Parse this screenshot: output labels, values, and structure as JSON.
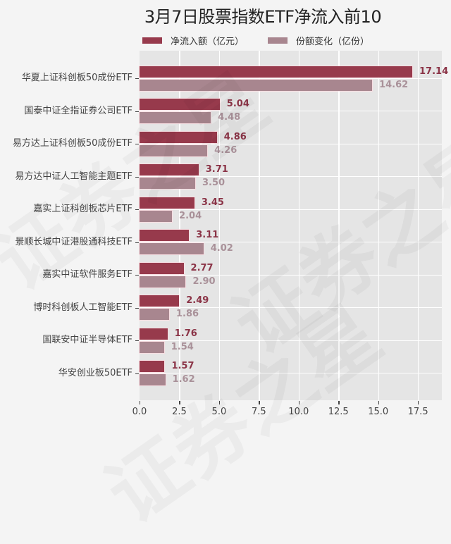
{
  "title": "3月7日股票指数ETF净流入前10",
  "legend": [
    {
      "label": "净流入额（亿元）",
      "color": "#973a4c"
    },
    {
      "label": "份额变化（亿份）",
      "color": "#a8868f"
    }
  ],
  "watermark": "证券之星",
  "x_ticks": [
    "0.0",
    "2.5",
    "5.0",
    "7.5",
    "10.0",
    "12.5",
    "15.0",
    "17.5"
  ],
  "chart_data": {
    "type": "bar",
    "orientation": "horizontal",
    "title": "3月7日股票指数ETF净流入前10",
    "xlabel": "",
    "ylabel": "",
    "xlim": [
      0,
      19
    ],
    "x_ticks": [
      0.0,
      2.5,
      5.0,
      7.5,
      10.0,
      12.5,
      15.0,
      17.5
    ],
    "grid": true,
    "legend_position": "top",
    "categories": [
      "华夏上证科创板50成份ETF",
      "国泰中证全指证券公司ETF",
      "易方达上证科创板50成份ETF",
      "易方达中证人工智能主题ETF",
      "嘉实上证科创板芯片ETF",
      "景顺长城中证港股通科技ETF",
      "嘉实中证软件服务ETF",
      "博时科创板人工智能ETF",
      "国联安中证半导体ETF",
      "华安创业板50ETF"
    ],
    "series": [
      {
        "name": "净流入额（亿元）",
        "color": "#973a4c",
        "values": [
          17.14,
          5.04,
          4.86,
          3.71,
          3.45,
          3.11,
          2.77,
          2.49,
          1.76,
          1.57
        ],
        "labels": [
          "17.14",
          "5.04",
          "4.86",
          "3.71",
          "3.45",
          "3.11",
          "2.77",
          "2.49",
          "1.76",
          "1.57"
        ]
      },
      {
        "name": "份额变化（亿份）",
        "color": "#a8868f",
        "values": [
          14.62,
          4.48,
          4.26,
          3.5,
          2.04,
          4.02,
          2.9,
          1.86,
          1.54,
          1.62
        ],
        "labels": [
          "14.62",
          "4.48",
          "4.26",
          "3.50",
          "2.04",
          "4.02",
          "2.90",
          "1.86",
          "1.54",
          "1.62"
        ]
      }
    ]
  }
}
